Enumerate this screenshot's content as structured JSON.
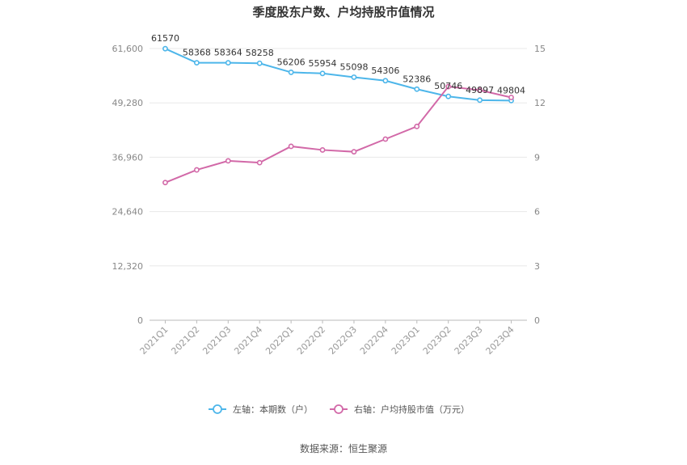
{
  "chart_data": {
    "type": "line",
    "title": "季度股东户数、户均持股市值情况",
    "categories": [
      "2021Q1",
      "2021Q2",
      "2021Q3",
      "2021Q4",
      "2022Q1",
      "2022Q2",
      "2022Q3",
      "2022Q4",
      "2023Q1",
      "2023Q2",
      "2023Q3",
      "2023Q4"
    ],
    "left_axis": {
      "min": 0,
      "max": 61600,
      "ticks": [
        "0",
        "12,320",
        "24,640",
        "36,960",
        "49,280",
        "61,600"
      ]
    },
    "right_axis": {
      "min": 0,
      "max": 15,
      "ticks": [
        "0",
        "3",
        "6",
        "9",
        "12",
        "15"
      ]
    },
    "series": [
      {
        "name": "左轴：本期数（户）",
        "axis": "left",
        "color": "#4db6ea",
        "values": [
          61570,
          58368,
          58364,
          58258,
          56206,
          55954,
          55098,
          54306,
          52386,
          50746,
          49897,
          49804
        ],
        "labels": [
          "61570",
          "58368",
          "58364",
          "58258",
          "56206",
          "55954",
          "55098",
          "54306",
          "52386",
          "50746",
          "49897",
          "49804"
        ]
      },
      {
        "name": "右轴：户均持股市值（万元）",
        "axis": "right",
        "color": "#d269a8",
        "values": [
          7.6,
          8.3,
          8.8,
          8.7,
          9.6,
          9.4,
          9.3,
          10.0,
          10.7,
          12.9,
          12.7,
          12.3
        ]
      }
    ],
    "grid": true,
    "legend_position": "bottom-center"
  },
  "source_text": "数据来源：恒生聚源"
}
